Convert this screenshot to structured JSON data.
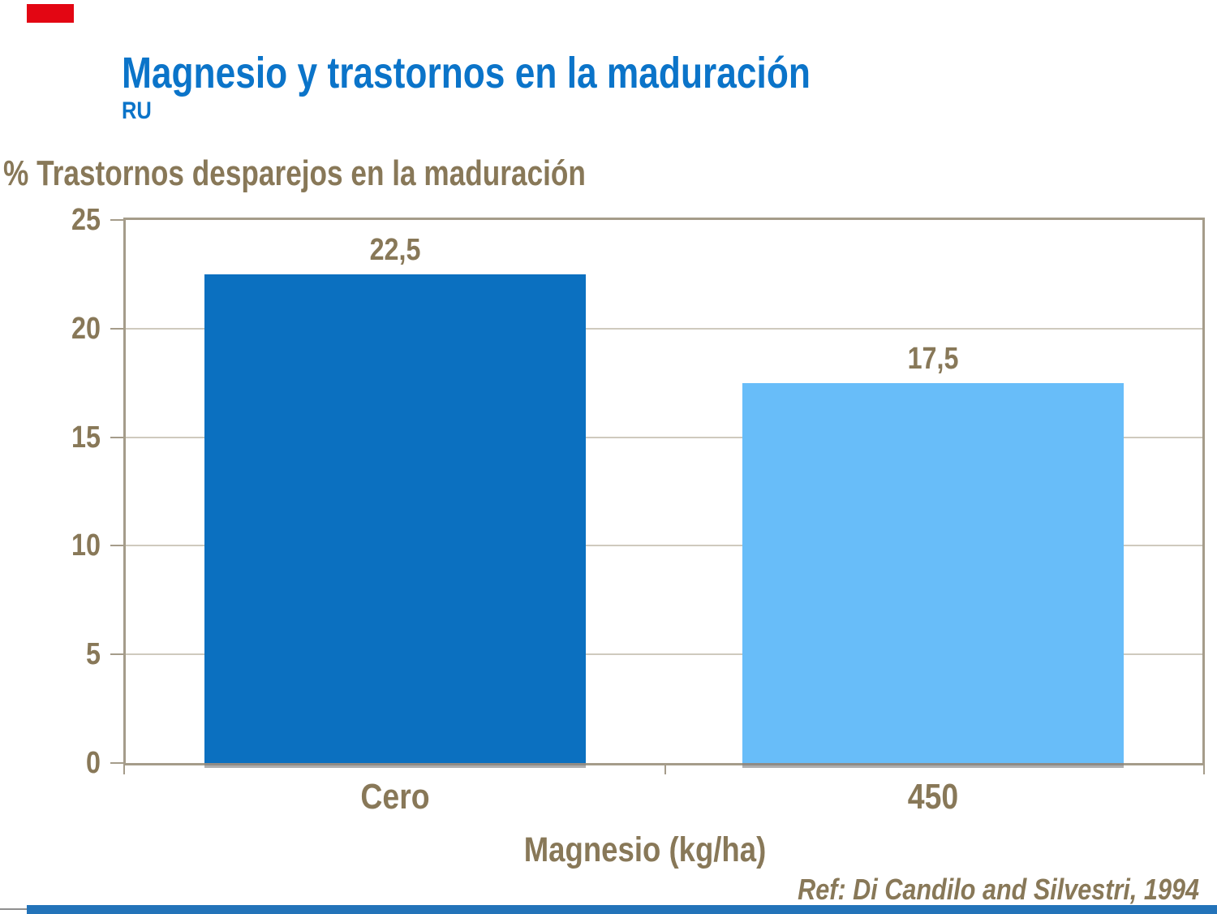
{
  "slide": {
    "title": "Magnesio y trastornos en la maduración",
    "subtitle": "RU",
    "footer_ref": "Ref: Di Candilo and Silvestri, 1994"
  },
  "colors": {
    "title_blue": "#0b74c9",
    "text_brown": "#887858",
    "axis_tan": "#a59c8a",
    "gridline": "#cfcabe",
    "bar_dark_blue": "#0b70c0",
    "bar_light_blue": "#68bdf9",
    "red_block": "#e30613",
    "footer_bar_blue": "#2373b9",
    "footer_line_gray": "#8f8f8f"
  },
  "chart_data": {
    "type": "bar",
    "title": "% Trastornos desparejos en la maduración",
    "categories": [
      "Cero",
      "450"
    ],
    "values": [
      22.5,
      17.5
    ],
    "value_labels": [
      "22,5",
      "17,5"
    ],
    "xlabel": "Magnesio (kg/ha)",
    "ylabel": "% Trastornos desparejos en la maduración",
    "ylim": [
      0,
      25
    ],
    "y_ticks": [
      0,
      5,
      10,
      15,
      20,
      25
    ],
    "grid": "horizontal",
    "legend": "none",
    "bar_colors": [
      "#0b70c0",
      "#68bdf9"
    ]
  }
}
